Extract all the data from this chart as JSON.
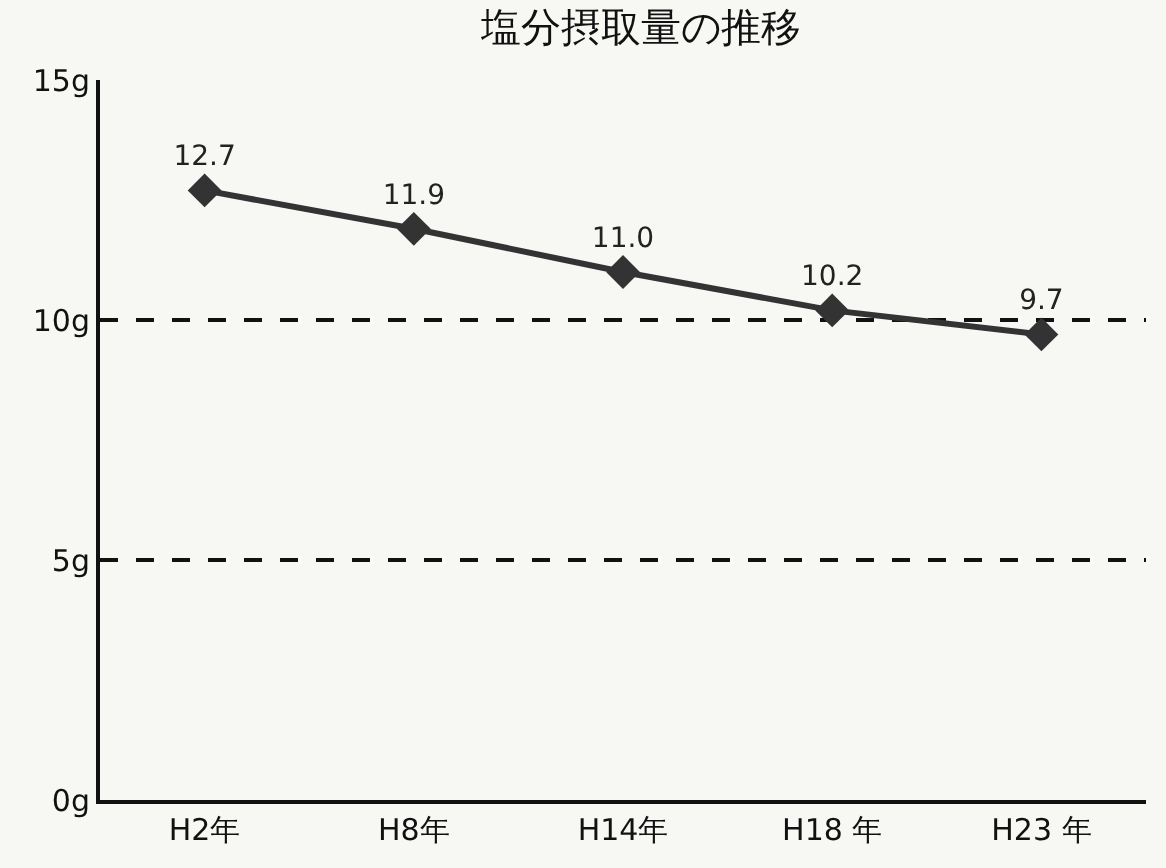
{
  "chart_data": {
    "type": "line",
    "title": "塩分摂取量の推移",
    "categories": [
      "H2年",
      "H8年",
      "H14年",
      "H18 年",
      "H23 年"
    ],
    "series": [
      {
        "color": "#333333",
        "values": [
          12.7,
          11.9,
          11.0,
          10.2,
          9.7
        ],
        "value_labels": [
          "12.7",
          "11.9",
          "11.0",
          "10.2",
          "9.7"
        ]
      }
    ],
    "ylim": [
      0,
      15
    ],
    "yticks": [
      {
        "value": 0,
        "label": "0g"
      },
      {
        "value": 5,
        "label": "5g"
      },
      {
        "value": 10,
        "label": "10g"
      },
      {
        "value": 15,
        "label": "15g"
      }
    ],
    "grid": "y",
    "marker": "diamond",
    "line_style": "solid"
  }
}
